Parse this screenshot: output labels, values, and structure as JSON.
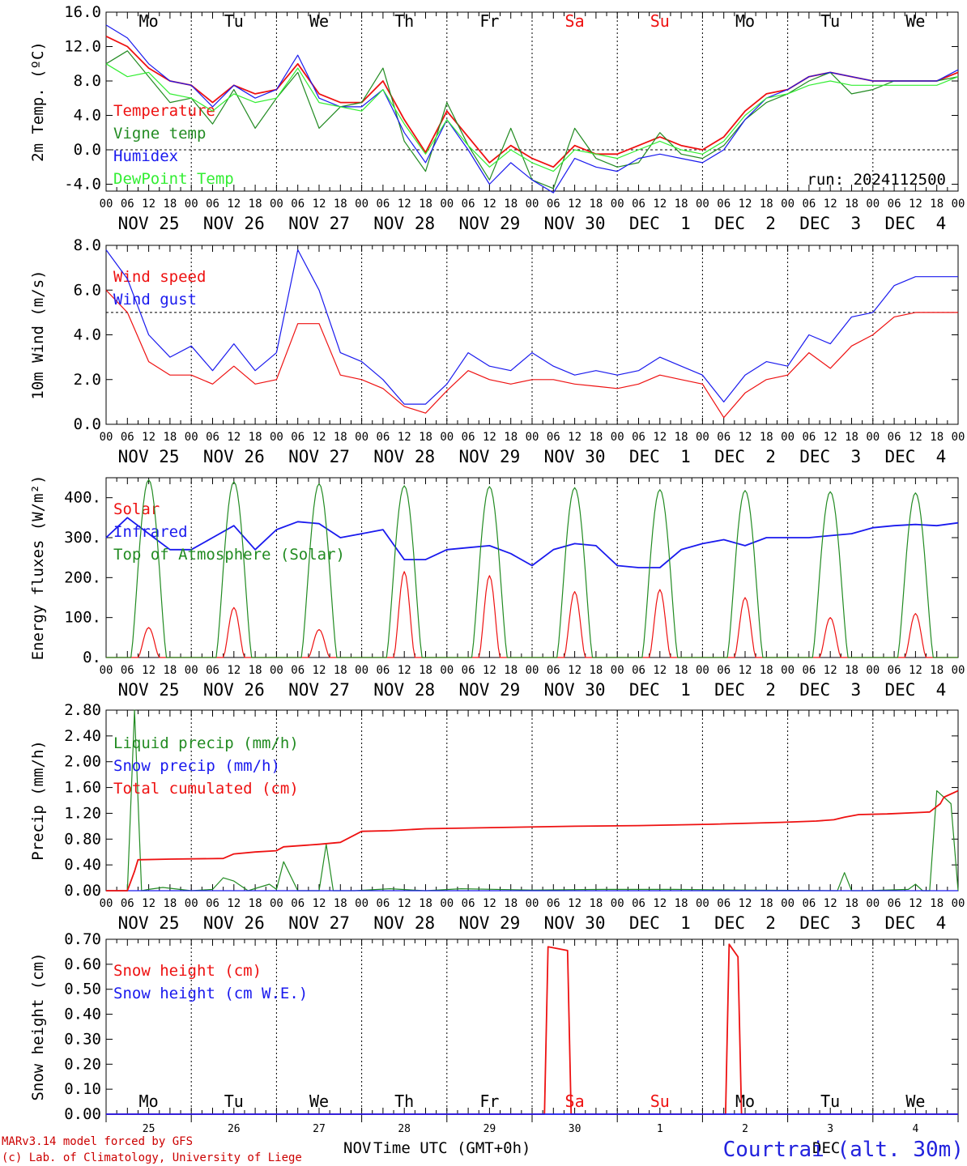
{
  "colors": {
    "red": "#ee1111",
    "green": "#228b22",
    "blue": "#1a1aee",
    "lightgreen": "#33ee33",
    "axis": "#000000",
    "credits": "#cc0000",
    "location": "#2222dd"
  },
  "header_days": [
    "Mo",
    "Tu",
    "We",
    "Th",
    "Fr",
    "Sa",
    "Su",
    "Mo",
    "Tu",
    "We"
  ],
  "weekend_days": [
    "Sa",
    "Su"
  ],
  "hour_ticks": [
    "00",
    "06",
    "12",
    "18"
  ],
  "date_labels": [
    "NOV 25",
    "NOV 26",
    "NOV 27",
    "NOV 28",
    "NOV 29",
    "NOV 30",
    "DEC  1",
    "DEC  2",
    "DEC  3",
    "DEC  4"
  ],
  "bottom_day_numbers": [
    "25",
    "26",
    "27",
    "28",
    "29",
    "30",
    "1",
    "2",
    "3",
    "4"
  ],
  "run_label": "run: 2024112500",
  "credits": {
    "line1": "MARv3.14 model forced by GFS",
    "line2": "(c) Lab. of Climatology, University of Liege"
  },
  "xlabel": "Time UTC (GMT+0h)",
  "xlabel_month": "NOV",
  "xlabel_month2": "DEC",
  "location": "Courtrai (alt. 30m)",
  "chart_data": [
    {
      "type": "line",
      "ylabel": "2m Temp. (ºC)",
      "ylim": [
        -4.8,
        16.0
      ],
      "yticks": [
        "16.0",
        "12.0",
        "8.0",
        "4.0",
        "0.0",
        "-4.0"
      ],
      "ytick_values": [
        16,
        12,
        8,
        4,
        0,
        -4
      ],
      "ref_line": 0,
      "x_hours": [
        0,
        6,
        12,
        18,
        24,
        30,
        36,
        42,
        48,
        54,
        60,
        66,
        72,
        78,
        84,
        90,
        96,
        102,
        108,
        114,
        120,
        126,
        132,
        138,
        144,
        150,
        156,
        162,
        168,
        174,
        180,
        186,
        192,
        198,
        204,
        210,
        216,
        222,
        228,
        234,
        240
      ],
      "series": [
        {
          "name": "Temperature",
          "color_key": "red",
          "values": [
            13.2,
            12.0,
            9.5,
            8.0,
            7.5,
            5.5,
            7.5,
            6.5,
            7.0,
            10.0,
            6.5,
            5.5,
            5.5,
            8.0,
            3.5,
            -0.3,
            4.5,
            1.5,
            -1.5,
            0.5,
            -1.0,
            -2.0,
            0.5,
            -0.5,
            -0.5,
            0.5,
            1.5,
            0.5,
            0.0,
            1.5,
            4.5,
            6.5,
            7.0,
            8.5,
            9.0,
            8.5,
            8.0,
            8.0,
            8.0,
            8.0,
            9.0
          ]
        },
        {
          "name": "Vigne temp",
          "color_key": "green",
          "values": [
            10.0,
            11.5,
            8.5,
            5.5,
            6.0,
            3.0,
            7.0,
            2.5,
            6.0,
            9.0,
            2.5,
            5.0,
            5.5,
            9.5,
            1.0,
            -2.5,
            5.5,
            0.5,
            -3.5,
            2.5,
            -3.5,
            -4.5,
            2.5,
            -1.0,
            -2.0,
            -1.5,
            2.0,
            -0.5,
            -1.0,
            0.5,
            3.5,
            5.5,
            6.5,
            8.0,
            9.0,
            6.5,
            7.0,
            8.0,
            8.0,
            8.0,
            8.5
          ]
        },
        {
          "name": "Humidex",
          "color_key": "blue",
          "values": [
            14.5,
            13.0,
            10.0,
            8.0,
            7.5,
            5.0,
            7.5,
            6.0,
            7.0,
            11.0,
            6.0,
            5.0,
            5.0,
            7.0,
            2.0,
            -1.5,
            3.5,
            0.0,
            -4.0,
            -1.5,
            -3.5,
            -5.0,
            -1.0,
            -2.0,
            -2.5,
            -1.0,
            -0.5,
            -1.0,
            -1.5,
            0.0,
            3.5,
            6.0,
            7.0,
            8.5,
            9.0,
            8.5,
            8.0,
            8.0,
            8.0,
            8.0,
            9.3
          ]
        },
        {
          "name": "DewPoint Temp",
          "color_key": "lightgreen",
          "values": [
            10.0,
            8.5,
            9.0,
            6.5,
            6.0,
            4.5,
            6.5,
            5.5,
            6.0,
            9.5,
            5.5,
            5.0,
            4.5,
            7.0,
            3.0,
            -0.5,
            3.5,
            0.5,
            -2.0,
            0.0,
            -1.5,
            -2.5,
            0.0,
            -0.5,
            -1.0,
            0.0,
            1.0,
            0.0,
            -0.5,
            1.0,
            4.0,
            6.0,
            6.5,
            7.5,
            8.0,
            7.5,
            7.5,
            7.5,
            7.5,
            7.5,
            8.5
          ]
        }
      ]
    },
    {
      "type": "line",
      "ylabel": "10m Wind (m/s)",
      "ylim": [
        0.0,
        8.0
      ],
      "yticks": [
        "8.0",
        "6.0",
        "4.0",
        "2.0",
        "0.0"
      ],
      "ytick_values": [
        8,
        6,
        4,
        2,
        0
      ],
      "ref_line": 5,
      "x_hours": [
        0,
        6,
        12,
        18,
        24,
        30,
        36,
        42,
        48,
        54,
        60,
        66,
        72,
        78,
        84,
        90,
        96,
        102,
        108,
        114,
        120,
        126,
        132,
        138,
        144,
        150,
        156,
        162,
        168,
        174,
        180,
        186,
        192,
        198,
        204,
        210,
        216,
        222,
        228,
        234,
        240
      ],
      "series": [
        {
          "name": "Wind speed",
          "color_key": "red",
          "values": [
            6.0,
            5.0,
            2.8,
            2.2,
            2.2,
            1.8,
            2.6,
            1.8,
            2.0,
            4.5,
            4.5,
            2.2,
            2.0,
            1.6,
            0.8,
            0.5,
            1.5,
            2.4,
            2.0,
            1.8,
            2.0,
            2.0,
            1.8,
            1.7,
            1.6,
            1.8,
            2.2,
            2.0,
            1.8,
            0.3,
            1.4,
            2.0,
            2.2,
            3.2,
            2.5,
            3.5,
            4.0,
            4.8,
            5.0,
            5.0,
            5.0
          ]
        },
        {
          "name": "Wind gust",
          "color_key": "blue",
          "values": [
            7.8,
            6.5,
            4.0,
            3.0,
            3.5,
            2.4,
            3.6,
            2.4,
            3.2,
            7.8,
            6.0,
            3.2,
            2.8,
            2.0,
            0.9,
            0.9,
            1.8,
            3.2,
            2.6,
            2.4,
            3.2,
            2.6,
            2.2,
            2.4,
            2.2,
            2.4,
            3.0,
            2.6,
            2.2,
            1.0,
            2.2,
            2.8,
            2.6,
            4.0,
            3.6,
            4.8,
            5.0,
            6.2,
            6.6,
            6.6,
            6.6
          ]
        }
      ]
    },
    {
      "type": "line",
      "ylabel": "Energy fluxes (W/m²)",
      "ylim": [
        0,
        450
      ],
      "yticks": [
        "400.",
        "300.",
        "200.",
        "100.",
        "0."
      ],
      "ytick_values": [
        400,
        300,
        200,
        100,
        0
      ],
      "day_peaks": {
        "Top of Atmosphere (Solar)": [
          445,
          440,
          435,
          430,
          428,
          425,
          420,
          418,
          415,
          412
        ],
        "Solar": [
          75,
          125,
          70,
          215,
          205,
          165,
          170,
          150,
          100,
          110
        ]
      },
      "series": [
        {
          "name": "Solar",
          "color_key": "red"
        },
        {
          "name": "Infrared",
          "color_key": "blue",
          "x_hours": [
            0,
            6,
            12,
            18,
            24,
            30,
            36,
            42,
            48,
            54,
            60,
            66,
            72,
            78,
            84,
            90,
            96,
            102,
            108,
            114,
            120,
            126,
            132,
            138,
            144,
            150,
            156,
            162,
            168,
            174,
            180,
            186,
            192,
            198,
            204,
            210,
            216,
            222,
            228,
            234,
            240
          ],
          "values": [
            300,
            350,
            310,
            270,
            270,
            300,
            330,
            270,
            320,
            340,
            335,
            300,
            310,
            320,
            245,
            245,
            270,
            275,
            280,
            260,
            230,
            270,
            285,
            280,
            230,
            225,
            225,
            270,
            285,
            295,
            280,
            300,
            300,
            300,
            305,
            310,
            325,
            330,
            333,
            330,
            337
          ]
        },
        {
          "name": "Top of Atmosphere (Solar)",
          "color_key": "green"
        }
      ]
    },
    {
      "type": "line",
      "ylabel": "Precip (mm/h)",
      "ylim": [
        0,
        2.8
      ],
      "yticks": [
        "2.80",
        "2.40",
        "2.00",
        "1.60",
        "1.20",
        "0.80",
        "0.40",
        "0.00"
      ],
      "ytick_values": [
        2.8,
        2.4,
        2.0,
        1.6,
        1.2,
        0.8,
        0.4,
        0.0
      ],
      "series": [
        {
          "name": "Liquid precip (mm/h)",
          "color_key": "green",
          "x_hours": [
            0,
            6,
            8,
            10,
            12,
            16,
            24,
            30,
            33,
            36,
            40,
            46,
            48,
            50,
            54,
            60,
            62,
            64,
            70,
            80,
            90,
            100,
            120,
            140,
            160,
            180,
            206,
            208,
            210,
            214,
            226,
            228,
            230,
            232,
            234,
            238,
            240
          ],
          "values": [
            0,
            0,
            2.8,
            0.0,
            0.02,
            0.05,
            0,
            0.02,
            0.2,
            0.15,
            0.0,
            0.1,
            0.02,
            0.45,
            0.0,
            0.0,
            0.72,
            0.0,
            0.0,
            0.03,
            0.0,
            0.03,
            0.01,
            0.02,
            0.02,
            0.01,
            0.0,
            0.28,
            0.0,
            0.0,
            0.02,
            0.1,
            0.0,
            0.0,
            1.55,
            1.35,
            0.0
          ]
        },
        {
          "name": "Snow precip (mm/h)",
          "color_key": "blue",
          "x_hours": [
            0,
            240
          ],
          "values": [
            0,
            0
          ]
        },
        {
          "name": "Total cumulated (cm)",
          "color_key": "red",
          "x_hours": [
            0,
            6,
            8,
            9,
            18,
            33,
            36,
            42,
            48,
            50,
            60,
            66,
            72,
            80,
            90,
            110,
            132,
            150,
            170,
            190,
            200,
            205,
            208,
            212,
            220,
            228,
            232,
            235,
            236,
            240
          ],
          "values": [
            0,
            0,
            0.3,
            0.48,
            0.49,
            0.5,
            0.57,
            0.6,
            0.62,
            0.68,
            0.72,
            0.75,
            0.92,
            0.93,
            0.96,
            0.98,
            1.0,
            1.01,
            1.03,
            1.06,
            1.08,
            1.1,
            1.14,
            1.18,
            1.19,
            1.21,
            1.22,
            1.35,
            1.45,
            1.55
          ]
        }
      ]
    },
    {
      "type": "line",
      "ylabel": "Snow height (cm)",
      "ylim": [
        0,
        0.7
      ],
      "yticks": [
        "0.70",
        "0.60",
        "0.50",
        "0.40",
        "0.30",
        "0.20",
        "0.10",
        "0.00"
      ],
      "ytick_values": [
        0.7,
        0.6,
        0.5,
        0.4,
        0.3,
        0.2,
        0.1,
        0.0
      ],
      "series": [
        {
          "name": "Snow height (cm)",
          "color_key": "red",
          "x_hours": [
            0,
            123.5,
            124.5,
            130,
            131,
            174.5,
            175.5,
            178,
            179,
            240
          ],
          "values": [
            0,
            0,
            0.67,
            0.655,
            0,
            0,
            0.68,
            0.63,
            0,
            0
          ]
        },
        {
          "name": "Snow height (cm W.E.)",
          "color_key": "blue",
          "x_hours": [
            0,
            240
          ],
          "values": [
            0,
            0
          ]
        }
      ]
    }
  ]
}
